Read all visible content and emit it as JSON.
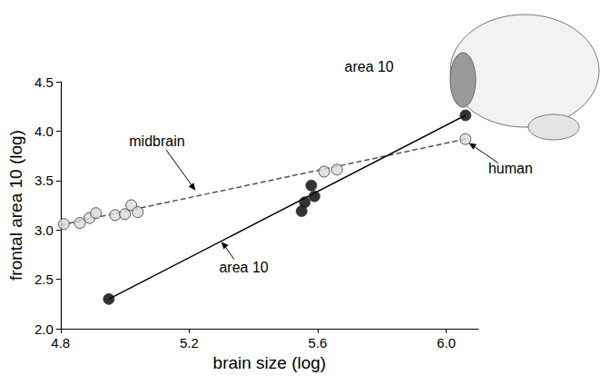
{
  "chart_data": {
    "type": "scatter",
    "x_label": "brain size (log)",
    "y_label": "frontal area 10 (log)",
    "xlim": [
      4.8,
      6.1
    ],
    "xticks": [
      4.8,
      5.2,
      5.6,
      {
        "value": 6,
        "label": "6.0"
      }
    ],
    "ylim": [
      2,
      4.5
    ],
    "yticks": [
      {
        "value": 2,
        "label": "2.0"
      },
      2.5,
      {
        "value": 3,
        "label": "3.0"
      },
      3.5,
      {
        "value": 4,
        "label": "4.0"
      },
      4.5
    ],
    "grid": false,
    "series": [
      {
        "name": "midbrain",
        "color": "#d9d9d9",
        "marker": "circle",
        "line_style": "dashed",
        "x": [
          4.81,
          4.86,
          4.89,
          4.91,
          4.97,
          5.0,
          5.02,
          5.04,
          5.62,
          5.66,
          6.06
        ],
        "values": [
          3.06,
          3.07,
          3.12,
          3.17,
          3.15,
          3.16,
          3.25,
          3.18,
          3.59,
          3.61,
          3.92
        ],
        "trend": {
          "x": [
            4.8,
            6.06
          ],
          "y": [
            3.05,
            3.92
          ]
        }
      },
      {
        "name": "area 10",
        "color": "#000000",
        "marker": "circle",
        "line_style": "solid",
        "x": [
          4.95,
          5.55,
          5.56,
          5.58,
          5.59,
          6.06
        ],
        "values": [
          2.3,
          3.19,
          3.28,
          3.45,
          3.34,
          4.16
        ],
        "trend": {
          "x": [
            4.95,
            6.06
          ],
          "y": [
            2.3,
            4.16
          ]
        }
      }
    ],
    "annotations": [
      {
        "text": "midbrain",
        "x": 5.1,
        "y": 3.9,
        "point_to": [
          5.22,
          3.4
        ]
      },
      {
        "text": "area 10",
        "x": 5.37,
        "y": 2.62,
        "point_to": [
          5.3,
          2.88
        ]
      },
      {
        "text": "human",
        "x": 6.2,
        "y": 3.62,
        "point_to": [
          6.07,
          3.88
        ]
      },
      {
        "text": "area 10",
        "x": 5.76,
        "y": 4.65
      }
    ]
  }
}
